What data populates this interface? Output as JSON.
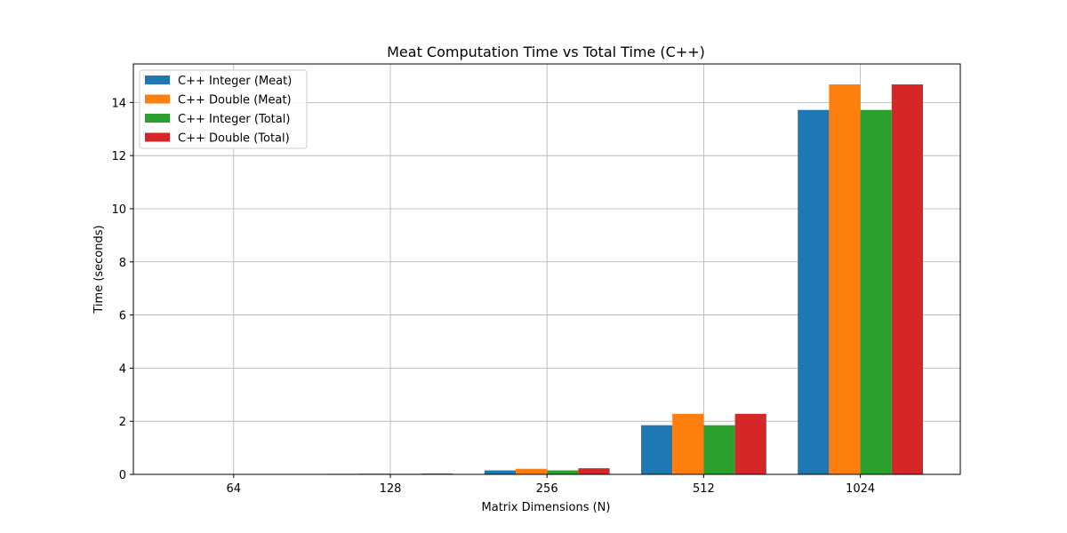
{
  "chart_data": {
    "type": "bar",
    "title": "Meat Computation Time vs Total Time (C++)",
    "xlabel": "Matrix Dimensions (N)",
    "ylabel": "Time (seconds)",
    "categories": [
      "64",
      "128",
      "256",
      "512",
      "1024"
    ],
    "ylim": [
      0,
      15.45
    ],
    "yticks": [
      0,
      2,
      4,
      6,
      8,
      10,
      12,
      14
    ],
    "grid": true,
    "legend_position": "top-left",
    "series": [
      {
        "name": "C++ Integer (Meat)",
        "color": "#1f77b4",
        "values": [
          0.002,
          0.02,
          0.15,
          1.85,
          13.72
        ]
      },
      {
        "name": "C++ Double (Meat)",
        "color": "#ff7f0e",
        "values": [
          0.003,
          0.03,
          0.21,
          2.28,
          14.68
        ]
      },
      {
        "name": "C++ Integer (Total)",
        "color": "#2ca02c",
        "values": [
          0.002,
          0.02,
          0.15,
          1.85,
          13.72
        ]
      },
      {
        "name": "C++ Double (Total)",
        "color": "#d62728",
        "values": [
          0.003,
          0.03,
          0.23,
          2.28,
          14.68
        ]
      }
    ]
  }
}
